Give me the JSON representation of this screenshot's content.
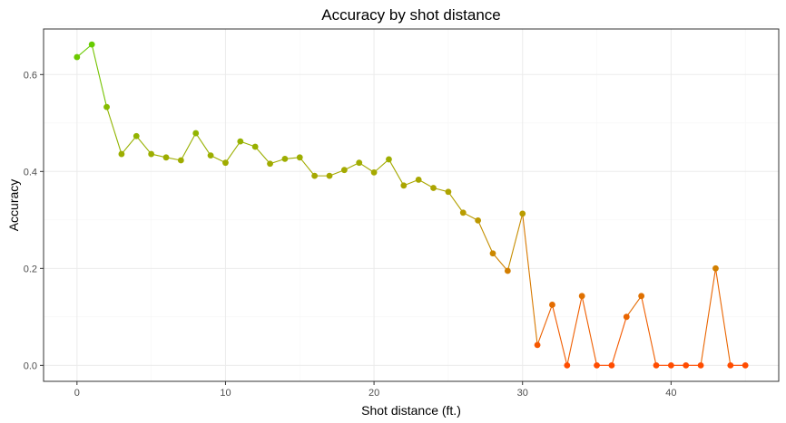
{
  "chart_data": {
    "type": "line",
    "title": "Accuracy by shot distance",
    "xlabel": "Shot distance (ft.)",
    "ylabel": "Accuracy",
    "xlim": [
      -2.25,
      47.25
    ],
    "ylim": [
      -0.033,
      0.694
    ],
    "x_ticks": [
      0,
      10,
      20,
      30,
      40
    ],
    "y_ticks": [
      0.0,
      0.2,
      0.4,
      0.6
    ],
    "x_tick_labels": [
      "0",
      "10",
      "20",
      "30",
      "40"
    ],
    "y_tick_labels": [
      "0.0",
      "0.2",
      "0.4",
      "0.6"
    ],
    "grid": true,
    "color_scale": {
      "high": "#66cc00",
      "mid": "#b5a000",
      "low": "#ff4c00"
    },
    "series": [
      {
        "x": [
          0,
          1,
          2,
          3,
          4,
          5,
          6,
          7,
          8,
          9,
          10,
          11,
          12,
          13,
          14,
          15,
          16,
          17,
          18,
          19,
          20,
          21,
          22,
          23,
          24,
          25,
          26,
          27,
          28,
          29,
          30,
          31,
          32,
          33,
          34,
          35,
          36,
          37,
          38,
          39,
          40,
          41,
          42,
          43,
          44,
          45
        ],
        "values": [
          0.636,
          0.662,
          0.533,
          0.436,
          0.473,
          0.436,
          0.429,
          0.423,
          0.479,
          0.433,
          0.418,
          0.462,
          0.451,
          0.416,
          0.426,
          0.429,
          0.391,
          0.391,
          0.403,
          0.418,
          0.398,
          0.425,
          0.371,
          0.383,
          0.366,
          0.358,
          0.315,
          0.299,
          0.231,
          0.195,
          0.313,
          0.042,
          0.125,
          0.0,
          0.143,
          0.0,
          0.0,
          0.1,
          0.143,
          0.0,
          0.0,
          0.0,
          0.0,
          0.2,
          0.0,
          0.0
        ]
      }
    ]
  }
}
